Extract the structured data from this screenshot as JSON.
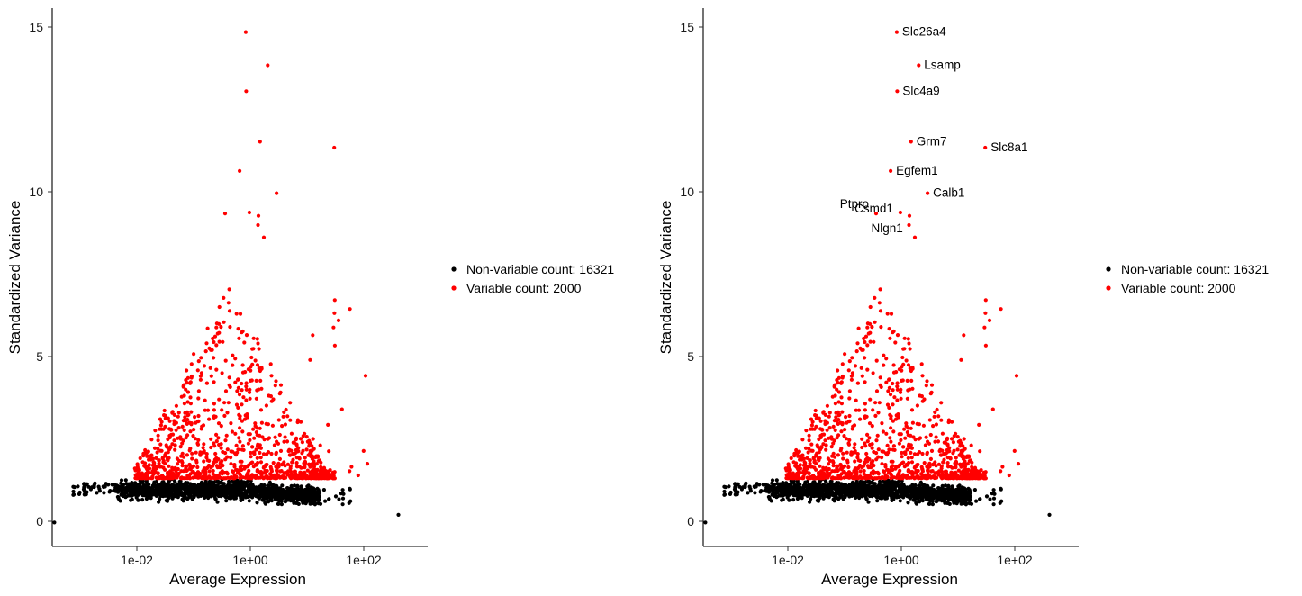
{
  "colors": {
    "variable": "#ff0000",
    "non_variable": "#000000",
    "axis": "#000000"
  },
  "legend": {
    "non_variable_label": "Non-variable count: 16321",
    "variable_label": "Variable count: 2000"
  },
  "chart_data": [
    {
      "type": "scatter",
      "xlabel": "Average Expression",
      "ylabel": "Standardized Variance",
      "x_scale": "log10",
      "xlim": [
        0.0001,
        2000
      ],
      "ylim": [
        -0.7,
        15.5
      ],
      "x_ticks": [
        0.01,
        1,
        100
      ],
      "x_tick_labels": [
        "1e-02",
        "1e+00",
        "1e+02"
      ],
      "y_ticks": [
        0,
        5,
        10,
        15
      ],
      "y_tick_labels": [
        "0",
        "5",
        "10",
        "15"
      ],
      "grid": false,
      "legend_position": "right",
      "series": [
        {
          "name": "Non-variable count: 16321",
          "color": "#000000",
          "count": 16321
        },
        {
          "name": "Variable count: 2000",
          "color": "#ff0000",
          "count": 2000
        }
      ],
      "notable_points": [
        {
          "x": 0.58,
          "y": 14.78
        },
        {
          "x": 1.55,
          "y": 13.78
        },
        {
          "x": 0.59,
          "y": 13.0
        },
        {
          "x": 1.1,
          "y": 11.48
        },
        {
          "x": 30.5,
          "y": 11.3
        },
        {
          "x": 0.44,
          "y": 10.6
        },
        {
          "x": 2.3,
          "y": 9.93
        },
        {
          "x": 0.23,
          "y": 9.32
        },
        {
          "x": 0.68,
          "y": 9.35
        },
        {
          "x": 1.02,
          "y": 9.25
        },
        {
          "x": 1.0,
          "y": 8.97
        },
        {
          "x": 1.3,
          "y": 8.6
        },
        {
          "x": 0.00011,
          "y": 0.02
        },
        {
          "x": 540,
          "y": 0.25
        }
      ],
      "annotations": []
    },
    {
      "type": "scatter",
      "xlabel": "Average Expression",
      "ylabel": "Standardized Variance",
      "x_scale": "log10",
      "xlim": [
        0.0001,
        2000
      ],
      "ylim": [
        -0.7,
        15.5
      ],
      "x_ticks": [
        0.01,
        1,
        100
      ],
      "x_tick_labels": [
        "1e-02",
        "1e+00",
        "1e+02"
      ],
      "y_ticks": [
        0,
        5,
        10,
        15
      ],
      "y_tick_labels": [
        "0",
        "5",
        "10",
        "15"
      ],
      "grid": false,
      "legend_position": "right",
      "series": [
        {
          "name": "Non-variable count: 16321",
          "color": "#000000",
          "count": 16321
        },
        {
          "name": "Variable count: 2000",
          "color": "#ff0000",
          "count": 2000
        }
      ],
      "notable_points": [
        {
          "x": 0.58,
          "y": 14.78
        },
        {
          "x": 1.55,
          "y": 13.78
        },
        {
          "x": 0.59,
          "y": 13.0
        },
        {
          "x": 1.1,
          "y": 11.48
        },
        {
          "x": 30.5,
          "y": 11.3
        },
        {
          "x": 0.44,
          "y": 10.6
        },
        {
          "x": 2.3,
          "y": 9.93
        },
        {
          "x": 0.23,
          "y": 9.32
        },
        {
          "x": 0.68,
          "y": 9.35
        },
        {
          "x": 1.02,
          "y": 9.25
        },
        {
          "x": 1.0,
          "y": 8.97
        },
        {
          "x": 1.3,
          "y": 8.6
        },
        {
          "x": 0.00011,
          "y": 0.02
        },
        {
          "x": 540,
          "y": 0.25
        }
      ],
      "annotations": [
        {
          "text": "Slc26a4",
          "x": 0.58,
          "y": 14.78
        },
        {
          "text": "Lsamp",
          "x": 1.55,
          "y": 13.78
        },
        {
          "text": "Slc4a9",
          "x": 0.59,
          "y": 13.0
        },
        {
          "text": "Grm7",
          "x": 1.1,
          "y": 11.48
        },
        {
          "text": "Slc8a1",
          "x": 30.5,
          "y": 11.3
        },
        {
          "text": "Egfem1",
          "x": 0.44,
          "y": 10.6
        },
        {
          "text": "Calb1",
          "x": 2.3,
          "y": 9.93
        },
        {
          "text": "Ptpro",
          "x": 0.23,
          "y": 9.32
        },
        {
          "text": "Csmd1",
          "x": 0.68,
          "y": 9.35
        },
        {
          "text": "Nlgn1",
          "x": 1.0,
          "y": 8.97
        }
      ]
    }
  ]
}
